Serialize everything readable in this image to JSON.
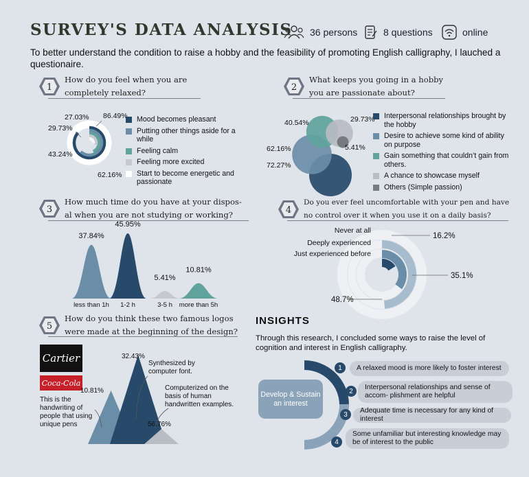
{
  "header": {
    "title": "SURVEY'S DATA ANALYSIS",
    "persons": "36 persons",
    "questions": "8 questions",
    "mode": "online"
  },
  "intro": "To better understand the condition to raise a hobby and the feasibility of promoting English calligraphy, I lauched a questionaire.",
  "sections": [
    {
      "num": "1",
      "q1": "How do you feel when you are",
      "q2": "completely relaxed?"
    },
    {
      "num": "2",
      "q1": "What keeps you going in a hobby",
      "q2": "you are passionate about?"
    },
    {
      "num": "3",
      "q1": "How much time do you have at your dispos-",
      "q2": "al when you are not studying or working?"
    },
    {
      "num": "4",
      "q1": "Do you ever feel uncomfortable with your pen and have",
      "q2": "no control over it when you use it on a daily basis?"
    },
    {
      "num": "5",
      "q1": "How do you think these two famous logos",
      "q2": "were made at the beginning of the design?"
    }
  ],
  "chart_data": [
    {
      "type": "pie",
      "title": "How do you feel when you are completely relaxed?",
      "categories": [
        "Mood becomes pleasant",
        "Putting other things aside for a while",
        "Feeling calm",
        "Feeling more excited",
        "Start to become energetic and passionate"
      ],
      "values": [
        86.49,
        62.16,
        43.24,
        29.73,
        27.03
      ],
      "labels": [
        "86.49%",
        "62.16%",
        "43.24%",
        "29.73%",
        "27.03%"
      ],
      "colors": [
        "#274a6b",
        "#6b8ea8",
        "#5fa39c",
        "#c6c9cf",
        "#ffffff"
      ]
    },
    {
      "type": "scatter",
      "title": "What keeps you going in a hobby you are passionate about?",
      "categories": [
        "Interpersonal relationships brought by the hobby",
        "Desire to achieve some kind of ability on purpose",
        "Gain something that couldn’t gain from others.",
        "A chance to showcase myself",
        "Others (Simple passion)"
      ],
      "values": [
        72.27,
        62.16,
        40.54,
        29.73,
        5.41
      ],
      "labels": [
        "72.27%",
        "62.16%",
        "40.54%",
        "29.73%",
        "5.41%"
      ],
      "colors": [
        "#274a6b",
        "#6b8ea8",
        "#5fa39c",
        "#b8bcc3",
        "#777b80"
      ]
    },
    {
      "type": "area",
      "title": "How much time do you have at your disposal when you are not studying or working?",
      "categories": [
        "less than 1h",
        "1-2 h",
        "3-5 h",
        "more than 5h"
      ],
      "values": [
        37.84,
        45.95,
        5.41,
        10.81
      ],
      "labels": [
        "37.84%",
        "45.95%",
        "5.41%",
        "10.81%"
      ],
      "colors": [
        "#6b8ea8",
        "#274a6b",
        "#c6c9cf",
        "#5fa39c"
      ]
    },
    {
      "type": "pie",
      "title": "Do you ever feel uncomfortable with your pen and have no control over it when you use it on a daily basis?",
      "categories": [
        "Never at all",
        "Deeply experienced",
        "Just experienced before"
      ],
      "values": [
        16.2,
        35.1,
        48.7
      ],
      "labels": [
        "16.2%",
        "35.1%",
        "48.7%"
      ],
      "colors": [
        "#274a6b",
        "#6b8ea8",
        "#a7bccd"
      ]
    },
    {
      "type": "bar",
      "title": "How do you think these two famous logos were made at the beginning of the design?",
      "categories": [
        "This is the handwriting of people that using unique pens",
        "Synthesized by computer font.",
        "Computerized on the basis of human handwritten examples."
      ],
      "values": [
        10.81,
        32.43,
        56.76
      ],
      "labels": [
        "10.81%",
        "32.43%",
        "56.76%"
      ],
      "colors": [
        "#6b8ea8",
        "#274a6b",
        "#b8bcc3"
      ]
    }
  ],
  "logos": {
    "cartier": "Cartier",
    "cocacola": "Coca-Cola"
  },
  "insights": {
    "title": "INSIGHTS",
    "text": "Through this research, I concluded some ways to raise the level of cognition and interest in English calligraphy.",
    "core": "Develop & Sustain an interest",
    "points": [
      {
        "num": "1",
        "text": "A relaxed mood is more likely to foster interest"
      },
      {
        "num": "2",
        "text": "Interpersonal relationships and sense of accom- plishment are helpful"
      },
      {
        "num": "3",
        "text": "Adequate time is necessary for any kind of interest"
      },
      {
        "num": "4",
        "text": "Some unfamiliar but interesting knowledge may be of interest to the public"
      }
    ]
  },
  "icons": [
    "people-icon",
    "document-edit-icon",
    "wifi-icon"
  ],
  "colors": {
    "dark": "#274a6b",
    "mid": "#6b8ea8",
    "teal": "#5fa39c",
    "gray": "#c6c9cf",
    "bg": "#dfe3ea"
  }
}
